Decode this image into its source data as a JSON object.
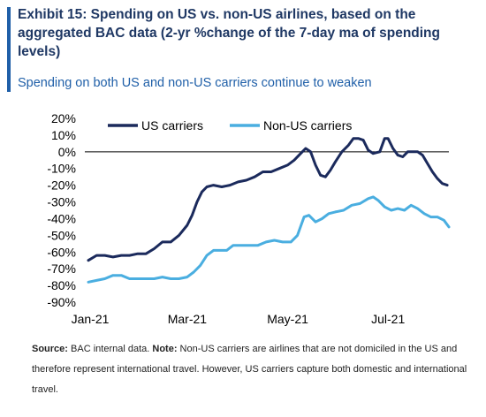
{
  "header": {
    "title": "Exhibit 15: Spending on US vs. non-US airlines, based on the aggregated BAC data (2-yr %change of the 7-day ma of spending levels)",
    "subtitle": "Spending on both US and non-US carriers continue to weaken"
  },
  "footer": {
    "source_label": "Source:",
    "source_text": "BAC internal data.",
    "note_label": "Note:",
    "note_text": "Non-US carriers are airlines that are not domiciled in the US and therefore represent international travel. However, US carriers capture both domestic and international travel."
  },
  "colors": {
    "title": "#1f3864",
    "subtitle": "#1f5fa8",
    "accent": "#1f5fa8",
    "us_series": "#1b2a5c",
    "non_us_series": "#4aaee0",
    "zero_line": "#000000"
  },
  "chart_data": {
    "type": "line",
    "ylim": [
      -90,
      20
    ],
    "y_ticks": [
      20,
      10,
      0,
      -10,
      -20,
      -30,
      -40,
      -50,
      -60,
      -70,
      -80,
      -90
    ],
    "y_tick_labels": [
      "20%",
      "10%",
      "0%",
      "-10%",
      "-20%",
      "-30%",
      "-40%",
      "-50%",
      "-60%",
      "-70%",
      "-80%",
      "-90%"
    ],
    "xlim": [
      "2021-01-01",
      "2021-08-08"
    ],
    "x_ticks": [
      "2021-01-01",
      "2021-03-01",
      "2021-05-01",
      "2021-07-01"
    ],
    "x_tick_labels": [
      "Jan-21",
      "Mar-21",
      "May-21",
      "Jul-21"
    ],
    "legend_position": "top",
    "zero_line": true,
    "series": [
      {
        "name": "US carriers",
        "points": [
          [
            "2021-01-01",
            -65
          ],
          [
            "2021-01-06",
            -62
          ],
          [
            "2021-01-11",
            -62
          ],
          [
            "2021-01-16",
            -63
          ],
          [
            "2021-01-21",
            -62
          ],
          [
            "2021-01-26",
            -62
          ],
          [
            "2021-01-31",
            -61
          ],
          [
            "2021-02-05",
            -61
          ],
          [
            "2021-02-10",
            -58
          ],
          [
            "2021-02-15",
            -54
          ],
          [
            "2021-02-20",
            -54
          ],
          [
            "2021-02-25",
            -50
          ],
          [
            "2021-03-02",
            -44
          ],
          [
            "2021-03-05",
            -38
          ],
          [
            "2021-03-08",
            -30
          ],
          [
            "2021-03-11",
            -24
          ],
          [
            "2021-03-14",
            -21
          ],
          [
            "2021-03-18",
            -20
          ],
          [
            "2021-03-23",
            -21
          ],
          [
            "2021-03-28",
            -20
          ],
          [
            "2021-04-02",
            -18
          ],
          [
            "2021-04-07",
            -17
          ],
          [
            "2021-04-12",
            -15
          ],
          [
            "2021-04-17",
            -12
          ],
          [
            "2021-04-22",
            -12
          ],
          [
            "2021-04-27",
            -10
          ],
          [
            "2021-05-02",
            -8
          ],
          [
            "2021-05-06",
            -5
          ],
          [
            "2021-05-10",
            -1
          ],
          [
            "2021-05-13",
            2
          ],
          [
            "2021-05-16",
            0
          ],
          [
            "2021-05-19",
            -8
          ],
          [
            "2021-05-22",
            -14
          ],
          [
            "2021-05-25",
            -15
          ],
          [
            "2021-05-28",
            -11
          ],
          [
            "2021-05-31",
            -6
          ],
          [
            "2021-06-04",
            0
          ],
          [
            "2021-06-08",
            4
          ],
          [
            "2021-06-11",
            8
          ],
          [
            "2021-06-14",
            8
          ],
          [
            "2021-06-17",
            7
          ],
          [
            "2021-06-20",
            1
          ],
          [
            "2021-06-23",
            -1
          ],
          [
            "2021-06-27",
            0
          ],
          [
            "2021-06-30",
            8
          ],
          [
            "2021-07-02",
            8
          ],
          [
            "2021-07-05",
            2
          ],
          [
            "2021-07-08",
            -2
          ],
          [
            "2021-07-11",
            -3
          ],
          [
            "2021-07-14",
            0
          ],
          [
            "2021-07-17",
            0
          ],
          [
            "2021-07-20",
            0
          ],
          [
            "2021-07-23",
            -2
          ],
          [
            "2021-07-26",
            -7
          ],
          [
            "2021-07-29",
            -12
          ],
          [
            "2021-08-01",
            -16
          ],
          [
            "2021-08-04",
            -19
          ],
          [
            "2021-08-07",
            -20
          ]
        ]
      },
      {
        "name": "Non-US carriers",
        "points": [
          [
            "2021-01-01",
            -78
          ],
          [
            "2021-01-06",
            -77
          ],
          [
            "2021-01-11",
            -76
          ],
          [
            "2021-01-16",
            -74
          ],
          [
            "2021-01-21",
            -74
          ],
          [
            "2021-01-26",
            -76
          ],
          [
            "2021-01-31",
            -76
          ],
          [
            "2021-02-05",
            -76
          ],
          [
            "2021-02-10",
            -76
          ],
          [
            "2021-02-15",
            -75
          ],
          [
            "2021-02-20",
            -76
          ],
          [
            "2021-02-25",
            -76
          ],
          [
            "2021-03-02",
            -75
          ],
          [
            "2021-03-06",
            -72
          ],
          [
            "2021-03-10",
            -68
          ],
          [
            "2021-03-14",
            -62
          ],
          [
            "2021-03-18",
            -59
          ],
          [
            "2021-03-22",
            -59
          ],
          [
            "2021-03-26",
            -59
          ],
          [
            "2021-03-30",
            -56
          ],
          [
            "2021-04-04",
            -56
          ],
          [
            "2021-04-09",
            -56
          ],
          [
            "2021-04-14",
            -56
          ],
          [
            "2021-04-19",
            -54
          ],
          [
            "2021-04-24",
            -53
          ],
          [
            "2021-04-29",
            -54
          ],
          [
            "2021-05-04",
            -54
          ],
          [
            "2021-05-08",
            -50
          ],
          [
            "2021-05-12",
            -39
          ],
          [
            "2021-05-15",
            -38
          ],
          [
            "2021-05-19",
            -42
          ],
          [
            "2021-05-23",
            -40
          ],
          [
            "2021-05-27",
            -37
          ],
          [
            "2021-05-31",
            -36
          ],
          [
            "2021-06-05",
            -35
          ],
          [
            "2021-06-10",
            -32
          ],
          [
            "2021-06-15",
            -31
          ],
          [
            "2021-06-20",
            -28
          ],
          [
            "2021-06-23",
            -27
          ],
          [
            "2021-06-26",
            -29
          ],
          [
            "2021-06-30",
            -33
          ],
          [
            "2021-07-04",
            -35
          ],
          [
            "2021-07-08",
            -34
          ],
          [
            "2021-07-12",
            -35
          ],
          [
            "2021-07-16",
            -32
          ],
          [
            "2021-07-20",
            -34
          ],
          [
            "2021-07-24",
            -37
          ],
          [
            "2021-07-28",
            -39
          ],
          [
            "2021-08-01",
            -39
          ],
          [
            "2021-08-05",
            -41
          ],
          [
            "2021-08-08",
            -45
          ]
        ]
      }
    ]
  }
}
